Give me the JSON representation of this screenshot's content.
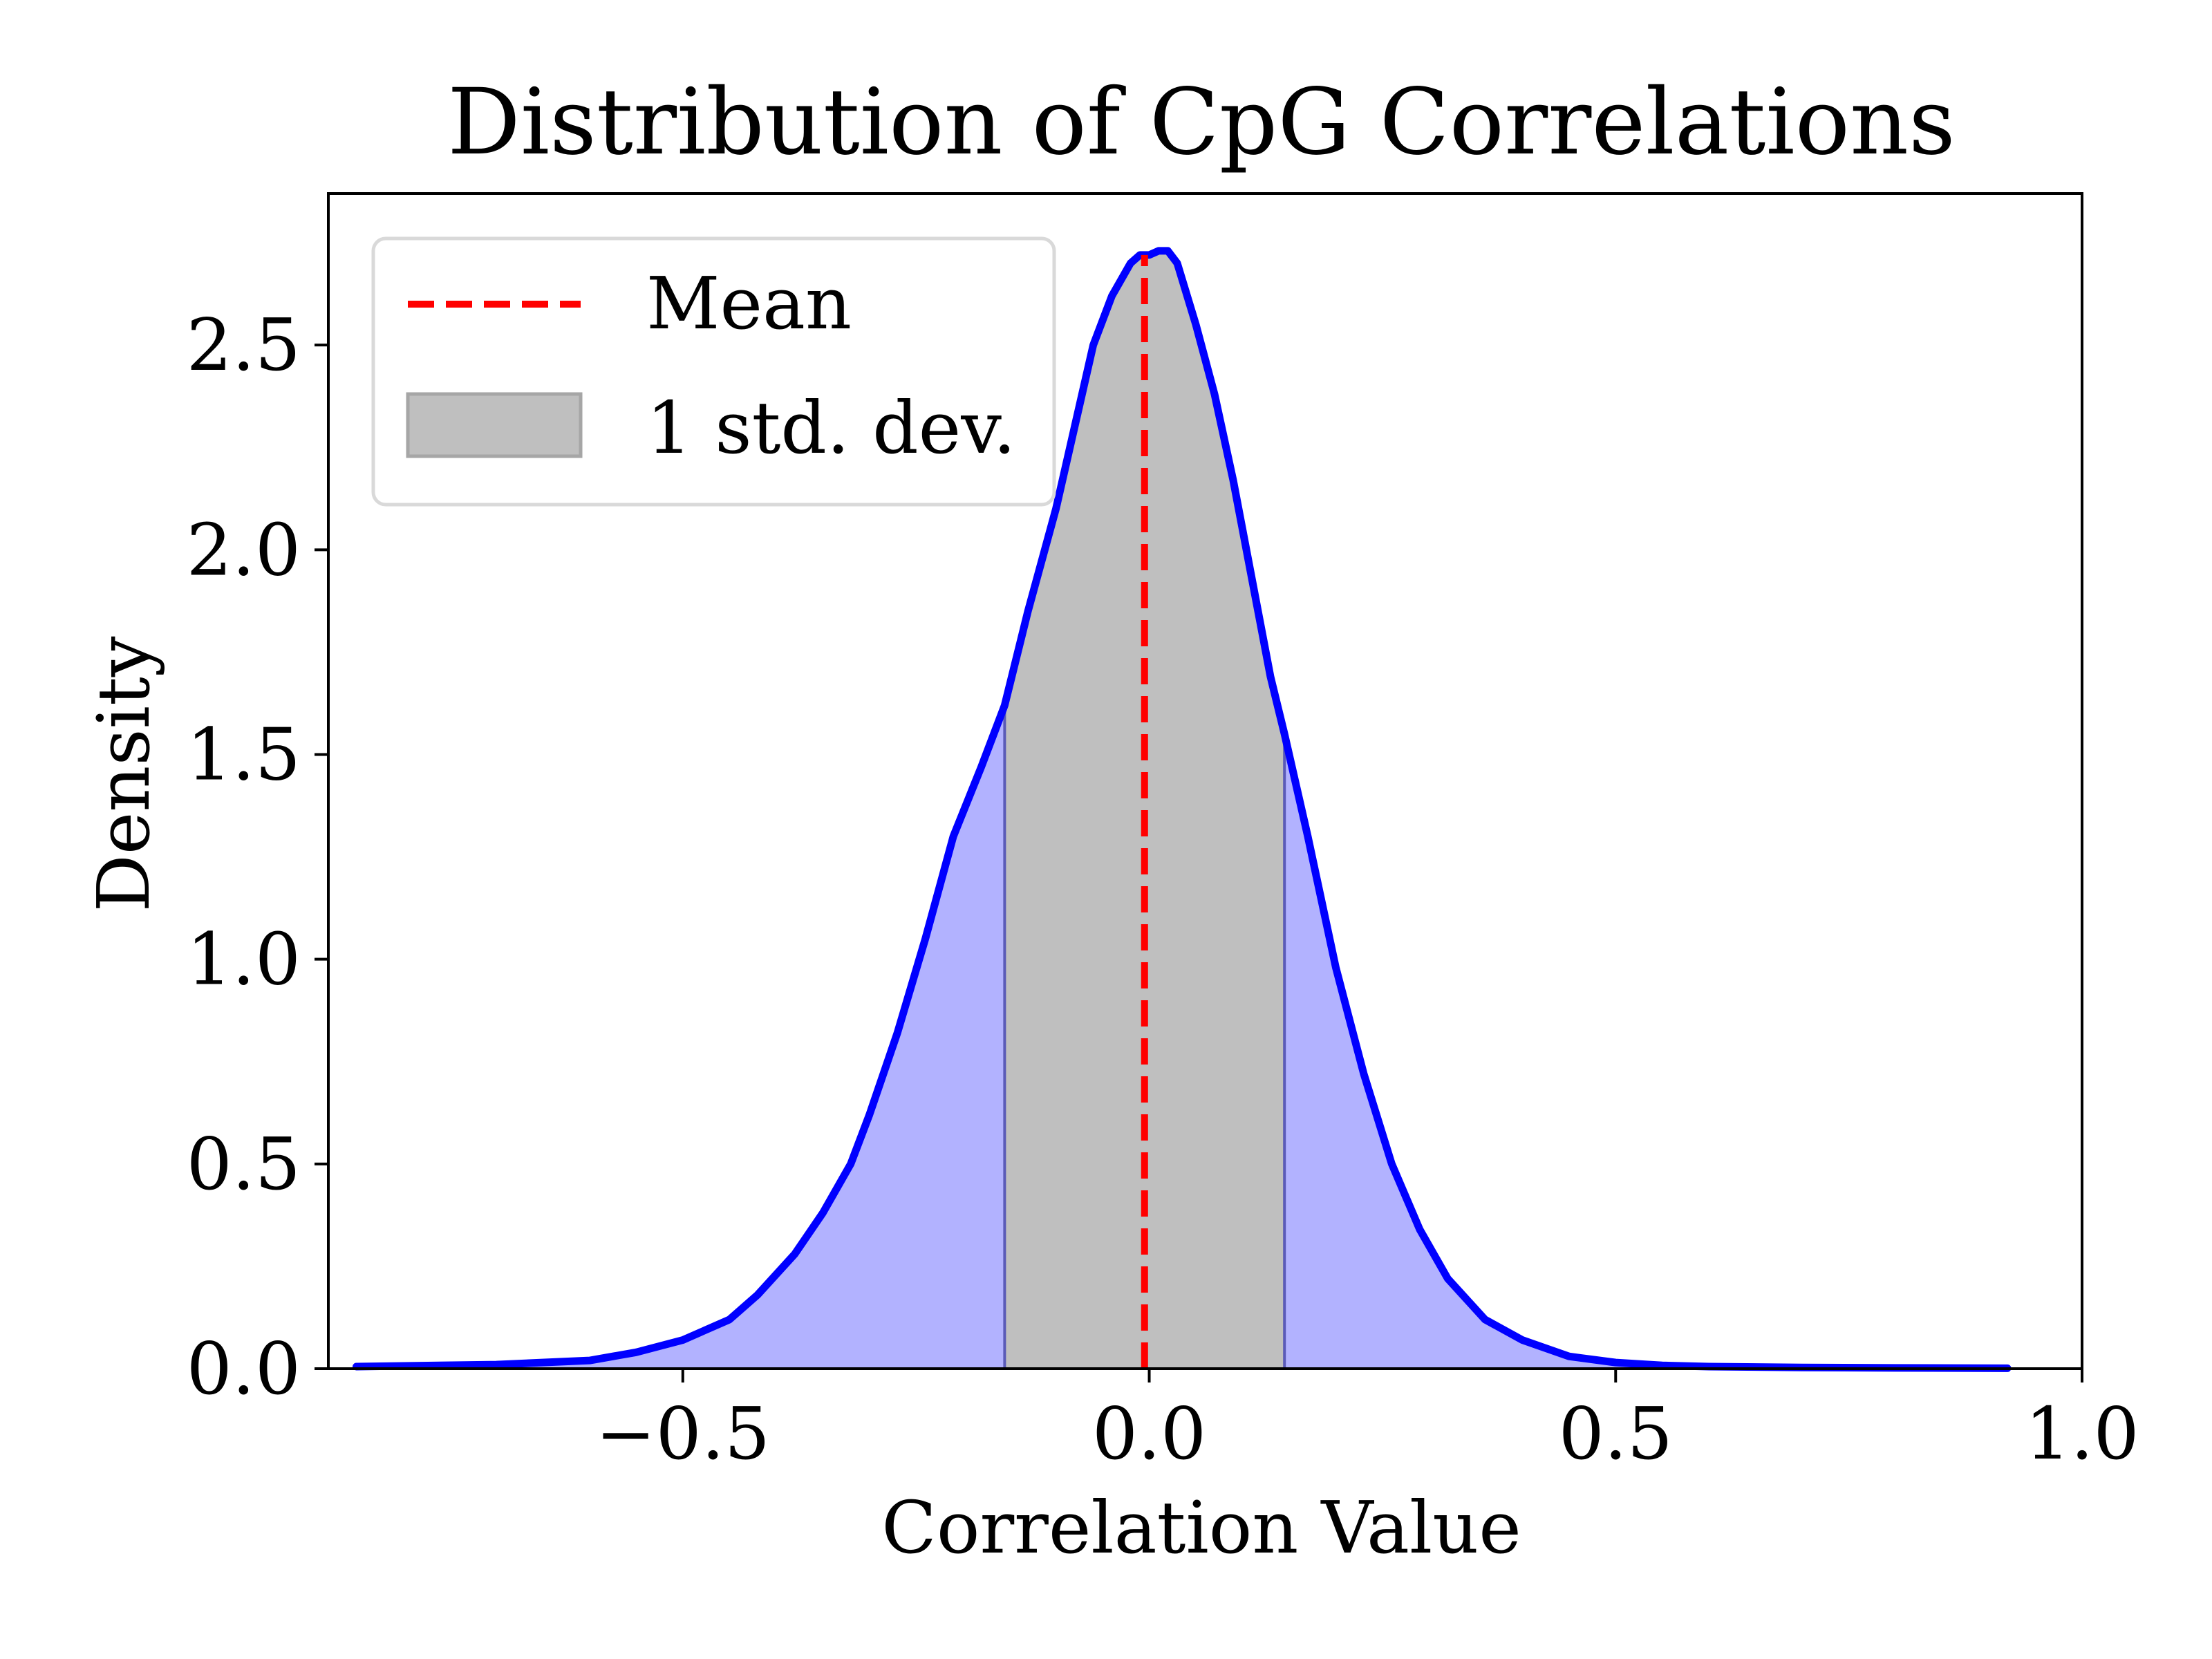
{
  "chart_data": {
    "type": "area",
    "title": "Distribution of CpG Correlations",
    "xlabel": "Correlation Value",
    "ylabel": "Density",
    "xlim": [
      -0.88,
      1.0
    ],
    "ylim": [
      0,
      2.87
    ],
    "xticks": [
      -0.5,
      0.0,
      0.5,
      1.0
    ],
    "xtick_labels": [
      "−0.5",
      "0.0",
      "0.5",
      "1.0"
    ],
    "yticks": [
      0.0,
      0.5,
      1.0,
      1.5,
      2.0,
      2.5
    ],
    "ytick_labels": [
      "0.0",
      "0.5",
      "1.0",
      "1.5",
      "2.0",
      "2.5"
    ],
    "grid": false,
    "legend_position": "top-left",
    "legend": [
      {
        "label": "Mean",
        "kind": "dashed-line",
        "color": "#ff0000"
      },
      {
        "label": "1 std. dev.",
        "kind": "patch",
        "color": "#bfbfbf"
      }
    ],
    "mean": -0.005,
    "std_band": [
      -0.155,
      0.145
    ],
    "series": [
      {
        "kind": "density",
        "line_color": "#0000ff",
        "fill_color": "#b2b2ff",
        "x": [
          -0.85,
          -0.7,
          -0.6,
          -0.55,
          -0.5,
          -0.45,
          -0.42,
          -0.38,
          -0.35,
          -0.32,
          -0.3,
          -0.27,
          -0.24,
          -0.21,
          -0.18,
          -0.155,
          -0.13,
          -0.1,
          -0.08,
          -0.06,
          -0.04,
          -0.02,
          -0.01,
          0.0,
          0.01,
          0.02,
          0.03,
          0.05,
          0.07,
          0.09,
          0.11,
          0.13,
          0.145,
          0.17,
          0.2,
          0.23,
          0.26,
          0.29,
          0.32,
          0.36,
          0.4,
          0.45,
          0.5,
          0.55,
          0.6,
          0.7,
          0.8,
          0.92
        ],
        "y": [
          0.005,
          0.01,
          0.02,
          0.04,
          0.07,
          0.12,
          0.18,
          0.28,
          0.38,
          0.5,
          0.62,
          0.82,
          1.05,
          1.3,
          1.47,
          1.62,
          1.85,
          2.1,
          2.3,
          2.5,
          2.62,
          2.7,
          2.72,
          2.72,
          2.73,
          2.73,
          2.7,
          2.55,
          2.38,
          2.17,
          1.93,
          1.69,
          1.55,
          1.3,
          0.98,
          0.72,
          0.5,
          0.34,
          0.22,
          0.12,
          0.07,
          0.03,
          0.015,
          0.008,
          0.005,
          0.003,
          0.002,
          0.001
        ]
      }
    ]
  }
}
